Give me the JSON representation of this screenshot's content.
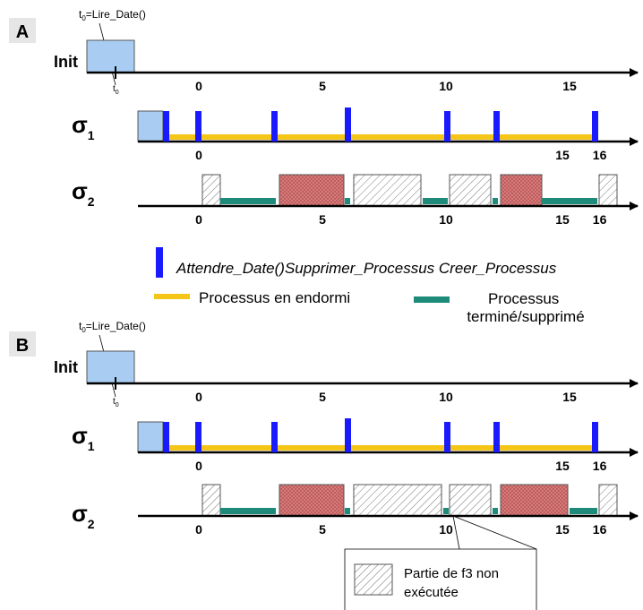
{
  "panels": [
    {
      "letter": "A",
      "t0_annotation": {
        "prefix": "t",
        "sub": "0",
        "suffix": "=Lire_Date()"
      },
      "t0_tick": {
        "main": "t",
        "sub": "0"
      },
      "rows": [
        {
          "label": "Init",
          "ticks": [
            {
              "t": 0,
              "label": "0"
            },
            {
              "t": 5,
              "label": "5"
            },
            {
              "t": 10,
              "label": "10"
            },
            {
              "t": 15,
              "label": "15"
            }
          ]
        },
        {
          "label": {
            "main": "σ",
            "sub": "1"
          },
          "ticks": [
            {
              "t": 0,
              "label": "0"
            },
            {
              "t": 15,
              "label": "15"
            },
            {
              "t": 16,
              "label": "16"
            }
          ]
        },
        {
          "label": {
            "main": "σ",
            "sub": "2"
          },
          "ticks": [
            {
              "t": 0,
              "label": "0"
            },
            {
              "t": 5,
              "label": "5"
            },
            {
              "t": 10,
              "label": "10"
            },
            {
              "t": 15,
              "label": "15"
            },
            {
              "t": 16,
              "label": "16"
            }
          ]
        }
      ]
    },
    {
      "letter": "B",
      "t0_annotation": {
        "prefix": "t",
        "sub": "0",
        "suffix": "=Lire_Date()"
      },
      "t0_tick": {
        "main": "t",
        "sub": "0"
      },
      "rows": [
        {
          "label": "Init",
          "ticks": [
            {
              "t": 0,
              "label": "0"
            },
            {
              "t": 5,
              "label": "5"
            },
            {
              "t": 10,
              "label": "10"
            },
            {
              "t": 15,
              "label": "15"
            }
          ]
        },
        {
          "label": {
            "main": "σ",
            "sub": "1"
          },
          "ticks": [
            {
              "t": 0,
              "label": "0"
            },
            {
              "t": 15,
              "label": "15"
            },
            {
              "t": 16,
              "label": "16"
            }
          ]
        },
        {
          "label": {
            "main": "σ",
            "sub": "2"
          },
          "ticks": [
            {
              "t": 0,
              "label": "0"
            },
            {
              "t": 5,
              "label": "5"
            },
            {
              "t": 10,
              "label": "10"
            },
            {
              "t": 15,
              "label": "15"
            },
            {
              "t": 16,
              "label": "16"
            }
          ]
        }
      ]
    }
  ],
  "legend": {
    "calls_label": "Attendre_Date()Supprimer_Processus Creer_Processus",
    "sleep_label": "Processus en endormi",
    "terminated_label_line1": "Processus",
    "terminated_label_line2": "terminé/supprimé"
  },
  "callout": {
    "line1": "Partie de f3 non",
    "line2": "exécutée"
  },
  "colors": {
    "init_block": "#a9cdf2",
    "call_marker": "#1a1aff",
    "sleep_bar": "#f5c518",
    "terminated_bar": "#1e8a7a",
    "task_red": "#d98080",
    "panel_letter_bg": "#e6e6e6"
  }
}
